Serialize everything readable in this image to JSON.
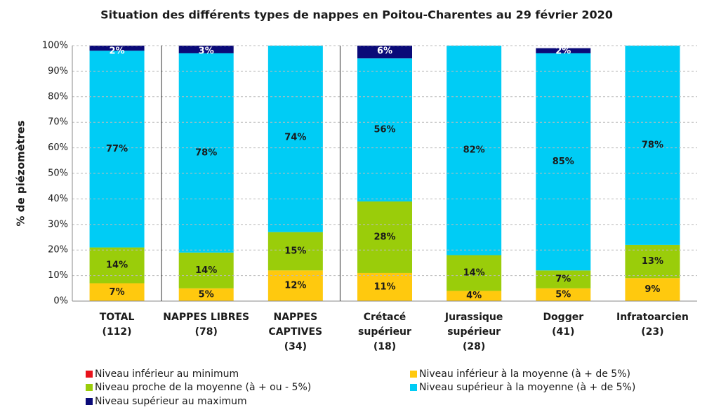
{
  "chart_data": {
    "type": "stacked_bar",
    "title": "Situation des différents types de nappes en Poitou-Charentes au 29 février 2020",
    "y_label": "% de piézomètres",
    "categories": [
      [
        "TOTAL",
        "(112)"
      ],
      [
        "NAPPES LIBRES",
        "(78)"
      ],
      [
        "NAPPES",
        "CAPTIVES",
        "(34)"
      ],
      [
        "Crétacé",
        "supérieur",
        "(18)"
      ],
      [
        "Jurassique",
        "supérieur",
        "(28)"
      ],
      [
        "Dogger",
        "(41)"
      ],
      [
        "Infratoarcien",
        "(23)"
      ]
    ],
    "series": [
      {
        "name": "Niveau inférieur au minimum",
        "color": "#e8131b",
        "values": [
          0,
          0,
          0,
          0,
          0,
          0,
          0
        ],
        "value_labels": [
          null,
          null,
          null,
          null,
          null,
          null,
          null
        ]
      },
      {
        "name": "Niveau inférieur à la moyenne (à + de 5%)",
        "color": "#ffc90e",
        "values": [
          7,
          5,
          12,
          11,
          4,
          5,
          9
        ],
        "value_labels": [
          "7%",
          "5%",
          "12%",
          "11%",
          "4%",
          "5%",
          "9%"
        ]
      },
      {
        "name": "Niveau proche de la moyenne (à + ou - 5%)",
        "color": "#9acd0a",
        "values": [
          14,
          14,
          15,
          28,
          14,
          7,
          13
        ],
        "value_labels": [
          "14%",
          "14%",
          "15%",
          "28%",
          "14%",
          "7%",
          "13%"
        ]
      },
      {
        "name": "Niveau supérieur à la moyenne (à + de  5%)",
        "color": "#00ccf5",
        "values": [
          77,
          78,
          74,
          56,
          82,
          85,
          78
        ],
        "value_labels": [
          "77%",
          "78%",
          "74%",
          "56%",
          "82%",
          "85%",
          "78%"
        ]
      },
      {
        "name": "Niveau supérieur au maximum",
        "color": "#0a0a78",
        "values": [
          2,
          3,
          0,
          6,
          0,
          2,
          0
        ],
        "value_labels": [
          "2%",
          "3%",
          null,
          "6%",
          null,
          "2%",
          null
        ]
      }
    ],
    "ylim": [
      0,
      100
    ],
    "yticks": [
      {
        "value": 0,
        "label": "0%"
      },
      {
        "value": 10,
        "label": "10%"
      },
      {
        "value": 20,
        "label": "20%"
      },
      {
        "value": 30,
        "label": "30%"
      },
      {
        "value": 40,
        "label": "40%"
      },
      {
        "value": 50,
        "label": "50%"
      },
      {
        "value": 60,
        "label": "60%"
      },
      {
        "value": 70,
        "label": "70%"
      },
      {
        "value": 80,
        "label": "80%"
      },
      {
        "value": 90,
        "label": "90%"
      },
      {
        "value": 100,
        "label": "100%"
      }
    ],
    "grid": true
  }
}
